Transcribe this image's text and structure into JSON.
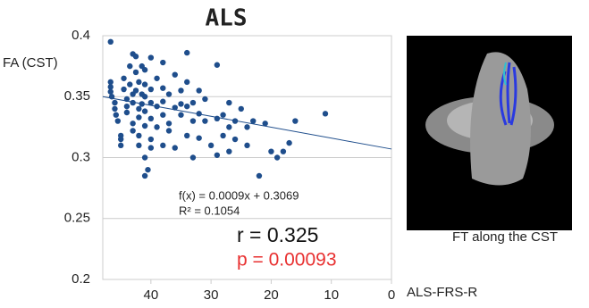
{
  "chart_data": {
    "type": "scatter",
    "title": "ALS",
    "y_label": "FA (CST)",
    "x_label": "ALS-FRS-R",
    "xlim": [
      48,
      0
    ],
    "xticks": [
      40,
      30,
      20,
      10,
      0
    ],
    "ylim": [
      0.2,
      0.4
    ],
    "yticks": [
      0.4,
      0.35,
      0.3,
      0.25,
      0.2
    ],
    "grid": true,
    "color": "#1f4e8c",
    "x": [
      46.7,
      46.7,
      46.7,
      46.7,
      46.5,
      46,
      46,
      45.8,
      45.5,
      45,
      45,
      45,
      44.5,
      44.5,
      44,
      44,
      44,
      43.5,
      43.5,
      43,
      43,
      43,
      43,
      43,
      42.5,
      42.5,
      42.5,
      42,
      42,
      42,
      42,
      42,
      41.5,
      41.5,
      41.5,
      41,
      41,
      41,
      41,
      41,
      41,
      41,
      40.5,
      40,
      40,
      40,
      40,
      40,
      40,
      39,
      39,
      39,
      38,
      38,
      38,
      38,
      38,
      37,
      37,
      37,
      36,
      36,
      36,
      35,
      35,
      35,
      34,
      34,
      34,
      34,
      33,
      33,
      33,
      32,
      32,
      32,
      31,
      31,
      30,
      29,
      29,
      29,
      28,
      28,
      27,
      27,
      27,
      26,
      26,
      25,
      24,
      24,
      23,
      22,
      21,
      20,
      19,
      18,
      17,
      16,
      11
    ],
    "values": [
      0.395,
      0.362,
      0.358,
      0.354,
      0.35,
      0.345,
      0.34,
      0.335,
      0.33,
      0.318,
      0.315,
      0.31,
      0.365,
      0.356,
      0.348,
      0.342,
      0.337,
      0.375,
      0.36,
      0.385,
      0.352,
      0.345,
      0.328,
      0.322,
      0.383,
      0.37,
      0.355,
      0.362,
      0.34,
      0.333,
      0.318,
      0.31,
      0.375,
      0.352,
      0.344,
      0.372,
      0.36,
      0.35,
      0.338,
      0.326,
      0.3,
      0.285,
      0.29,
      0.382,
      0.356,
      0.345,
      0.332,
      0.315,
      0.308,
      0.365,
      0.342,
      0.325,
      0.378,
      0.357,
      0.346,
      0.335,
      0.31,
      0.352,
      0.328,
      0.322,
      0.368,
      0.341,
      0.308,
      0.355,
      0.344,
      0.335,
      0.386,
      0.362,
      0.342,
      0.318,
      0.345,
      0.33,
      0.3,
      0.355,
      0.336,
      0.316,
      0.348,
      0.33,
      0.31,
      0.376,
      0.332,
      0.302,
      0.335,
      0.318,
      0.345,
      0.325,
      0.305,
      0.315,
      0.33,
      0.34,
      0.325,
      0.31,
      0.33,
      0.285,
      0.328,
      0.305,
      0.3,
      0.305,
      0.312,
      0.33,
      0.336
    ],
    "trendline": {
      "x": [
        48,
        0
      ],
      "values": [
        0.35,
        0.307
      ]
    },
    "annotations": [
      "f(x) = 0.0009x + 0.3069",
      "R² = 0.1054",
      "r = 0.325",
      "p = 0.00093"
    ]
  },
  "image_panel": {
    "caption": "FT along the CST"
  }
}
